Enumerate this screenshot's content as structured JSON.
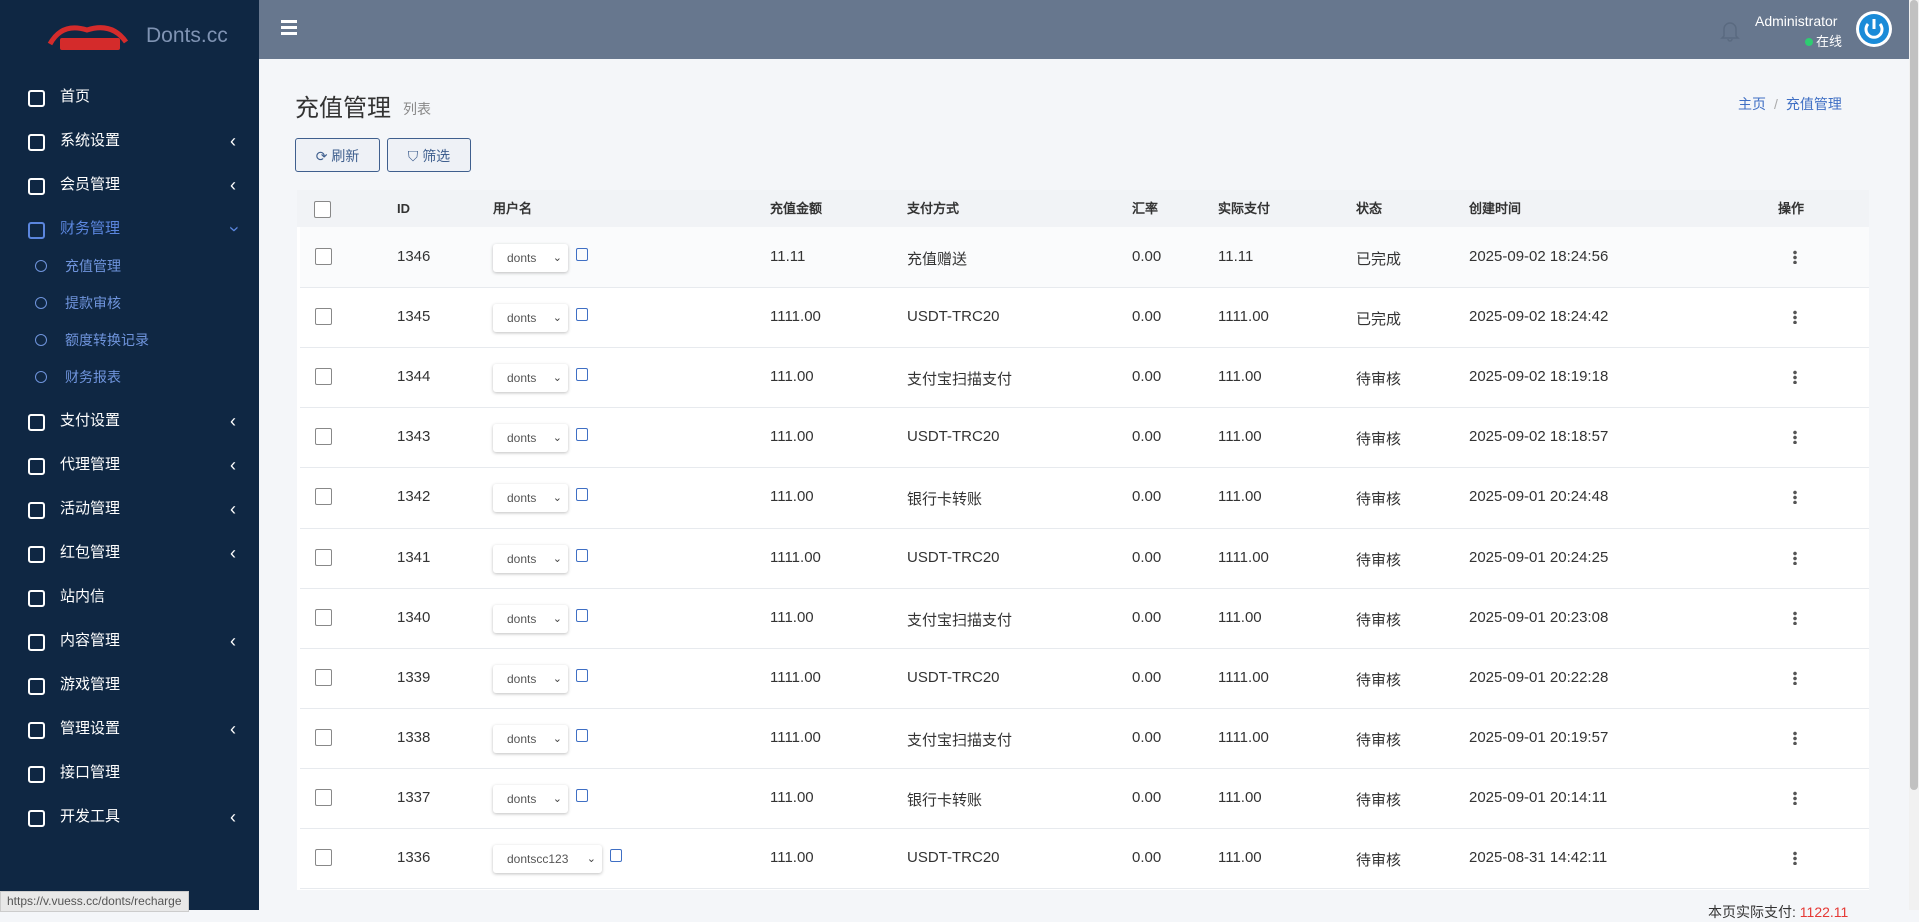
{
  "sidebar": {
    "brand": "Donts.cc",
    "menu": [
      {
        "label": "首页",
        "collapsible": false
      },
      {
        "label": "系统设置",
        "collapsible": true
      },
      {
        "label": "会员管理",
        "collapsible": true
      },
      {
        "label": "财务管理",
        "collapsible": true,
        "expanded": true,
        "children": [
          "充值管理",
          "提款审核",
          "额度转换记录",
          "财务报表"
        ]
      },
      {
        "label": "支付设置",
        "collapsible": true
      },
      {
        "label": "代理管理",
        "collapsible": true
      },
      {
        "label": "活动管理",
        "collapsible": true
      },
      {
        "label": "红包管理",
        "collapsible": true
      },
      {
        "label": "站内信",
        "collapsible": false
      },
      {
        "label": "内容管理",
        "collapsible": true
      },
      {
        "label": "游戏管理",
        "collapsible": false
      },
      {
        "label": "管理设置",
        "collapsible": true
      },
      {
        "label": "接口管理",
        "collapsible": false
      },
      {
        "label": "开发工具",
        "collapsible": true
      }
    ]
  },
  "header": {
    "user": "Administrator",
    "status": "在线"
  },
  "page": {
    "title": "充值管理",
    "subtitle": "列表",
    "breadcrumb": [
      "主页",
      "充值管理"
    ],
    "buttons": [
      "刷新",
      "筛选"
    ]
  },
  "table": {
    "columns": [
      "ID",
      "用户名",
      "充值金额",
      "支付方式",
      "汇率",
      "实际支付",
      "状态",
      "创建时间",
      "操作"
    ],
    "rows": [
      [
        "1346",
        "donts",
        "11.11",
        "充值赠送",
        "0.00",
        "11.11",
        "已完成",
        "2025-09-02 18:24:56"
      ],
      [
        "1345",
        "donts",
        "1111.00",
        "USDT-TRC20",
        "0.00",
        "1111.00",
        "已完成",
        "2025-09-02 18:24:42"
      ],
      [
        "1344",
        "donts",
        "111.00",
        "支付宝扫描支付",
        "0.00",
        "111.00",
        "待审核",
        "2025-09-02 18:19:18"
      ],
      [
        "1343",
        "donts",
        "111.00",
        "USDT-TRC20",
        "0.00",
        "111.00",
        "待审核",
        "2025-09-02 18:18:57"
      ],
      [
        "1342",
        "donts",
        "111.00",
        "银行卡转账",
        "0.00",
        "111.00",
        "待审核",
        "2025-09-01 20:24:48"
      ],
      [
        "1341",
        "donts",
        "1111.00",
        "USDT-TRC20",
        "0.00",
        "1111.00",
        "待审核",
        "2025-09-01 20:24:25"
      ],
      [
        "1340",
        "donts",
        "111.00",
        "支付宝扫描支付",
        "0.00",
        "111.00",
        "待审核",
        "2025-09-01 20:23:08"
      ],
      [
        "1339",
        "donts",
        "1111.00",
        "USDT-TRC20",
        "0.00",
        "1111.00",
        "待审核",
        "2025-09-01 20:22:28"
      ],
      [
        "1338",
        "donts",
        "1111.00",
        "支付宝扫描支付",
        "0.00",
        "1111.00",
        "待审核",
        "2025-09-01 20:19:57"
      ],
      [
        "1337",
        "donts",
        "111.00",
        "银行卡转账",
        "0.00",
        "111.00",
        "待审核",
        "2025-09-01 20:14:11"
      ],
      [
        "1336",
        "dontscc123",
        "111.00",
        "USDT-TRC20",
        "0.00",
        "111.00",
        "待审核",
        "2025-08-31 14:42:11"
      ]
    ]
  },
  "footer": {
    "label": "本页实际支付:",
    "value": "1122.11"
  },
  "statusbar": {
    "url": "https://v.vuess.cc/donts/recharge"
  }
}
